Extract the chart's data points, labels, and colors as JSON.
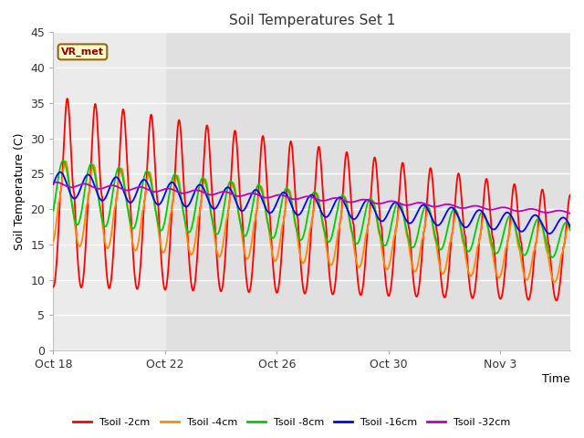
{
  "title": "Soil Temperatures Set 1",
  "xlabel": "Time",
  "ylabel": "Soil Temperature (C)",
  "ylim": [
    0,
    45
  ],
  "yticks": [
    0,
    5,
    10,
    15,
    20,
    25,
    30,
    35,
    40,
    45
  ],
  "xtick_dates": [
    "Oct 18",
    "Oct 22",
    "Oct 26",
    "Oct 30",
    "Nov 3"
  ],
  "xtick_offsets_days": [
    0,
    4,
    8,
    12,
    16
  ],
  "total_days": 18.5,
  "colors": {
    "Tsoil -2cm": "#ff0000",
    "Tsoil -4cm": "#ff8800",
    "Tsoil -8cm": "#00cc00",
    "Tsoil -16cm": "#0000ff",
    "Tsoil -32cm": "#bb00bb"
  },
  "bg_plot": "#e0e0e0",
  "bg_lighter": "#ebebeb",
  "annotation_text": "VR_met",
  "annotation_color": "#8b0000",
  "annotation_bg": "#ffffcc",
  "annotation_border": "#8b6914",
  "grid_color": "#ffffff",
  "fig_bg": "#ffffff"
}
